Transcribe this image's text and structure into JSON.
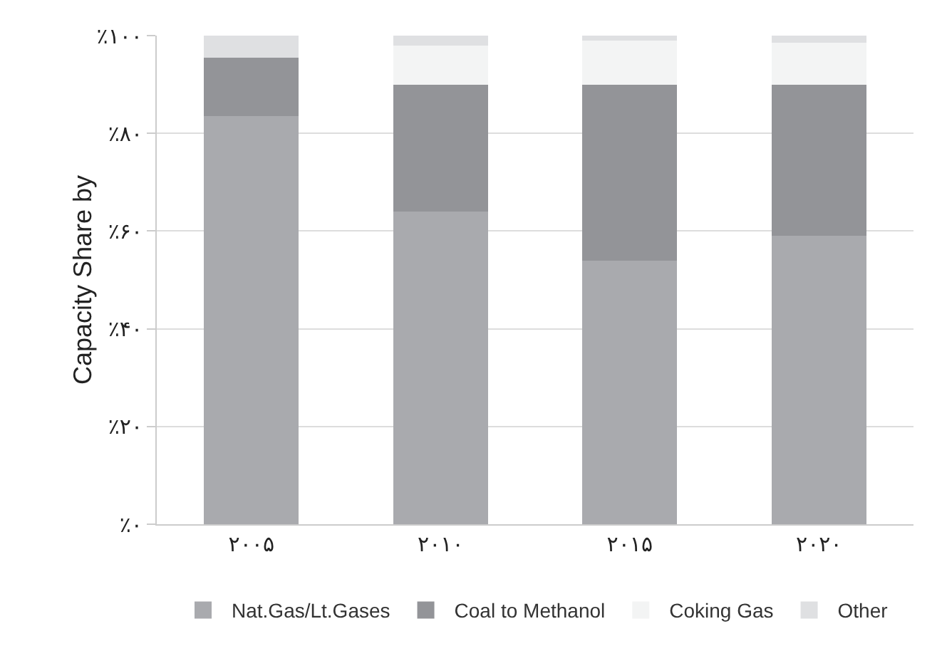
{
  "chart_data": {
    "type": "bar",
    "stacked": true,
    "ylabel": "Capacity Share by",
    "categories": [
      "۲۰۰۵",
      "۲۰۱۰",
      "۲۰۱۵",
      "۲۰۲۰"
    ],
    "series": [
      {
        "name": "Nat.Gas/Lt.Gases",
        "color": "#a9aaae",
        "values": [
          83.5,
          64,
          54,
          59
        ]
      },
      {
        "name": "Coal to Methanol",
        "color": "#939498",
        "values": [
          12,
          26,
          36,
          31
        ]
      },
      {
        "name": "Coking Gas",
        "color": "#f3f4f4",
        "values": [
          0,
          8,
          9,
          8.5
        ]
      },
      {
        "name": "Other",
        "color": "#dfe0e2",
        "values": [
          4.5,
          2,
          1,
          1.5
        ]
      }
    ],
    "ylim": [
      0,
      100
    ],
    "yticks": [
      {
        "value": 0,
        "label": "٪۰"
      },
      {
        "value": 20,
        "label": "٪۲۰"
      },
      {
        "value": 40,
        "label": "٪۴۰"
      },
      {
        "value": 60,
        "label": "٪۶۰"
      },
      {
        "value": 80,
        "label": "٪۸۰"
      },
      {
        "value": 100,
        "label": "٪۱۰۰"
      }
    ],
    "grid": "y",
    "legend": "bottom"
  }
}
